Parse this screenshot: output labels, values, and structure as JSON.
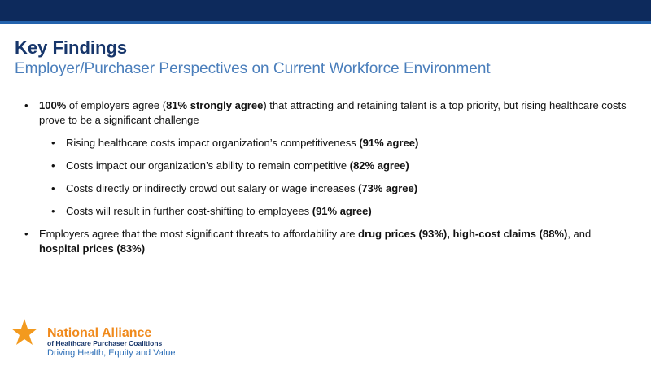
{
  "header": {
    "title": "Key Findings",
    "subtitle": "Employer/Purchaser Perspectives on Current Workforce Environment"
  },
  "bullets": [
    {
      "runs": [
        {
          "text": "100%",
          "bold": true
        },
        {
          "text": " of employers agree ("
        },
        {
          "text": "81% strongly agree",
          "bold": true
        },
        {
          "text": ") that attracting and retaining talent is a top priority, but rising healthcare costs prove to be a significant challenge"
        }
      ],
      "sub": [
        {
          "runs": [
            {
              "text": "Rising healthcare costs impact organization’s competitiveness "
            },
            {
              "text": "(91% agree)",
              "bold": true
            }
          ]
        },
        {
          "runs": [
            {
              "text": "Costs impact our organization’s ability to remain competitive "
            },
            {
              "text": "(82% agree)",
              "bold": true
            }
          ]
        },
        {
          "runs": [
            {
              "text": "Costs directly or indirectly crowd out salary or wage increases "
            },
            {
              "text": "(73% agree)",
              "bold": true
            }
          ]
        },
        {
          "runs": [
            {
              "text": "Costs will result in further cost-shifting to employees "
            },
            {
              "text": "(91% agree)",
              "bold": true
            }
          ]
        }
      ]
    },
    {
      "runs": [
        {
          "text": "Employers agree that the most significant threats to affordability are "
        },
        {
          "text": "drug prices (93%), high-cost claims (88%)",
          "bold": true
        },
        {
          "text": ", and "
        },
        {
          "text": "hospital prices (83%)",
          "bold": true
        }
      ]
    }
  ],
  "logo": {
    "name": "National Alliance",
    "line2": "of Healthcare Purchaser Coalitions",
    "tagline": "Driving Health, Equity and Value"
  }
}
